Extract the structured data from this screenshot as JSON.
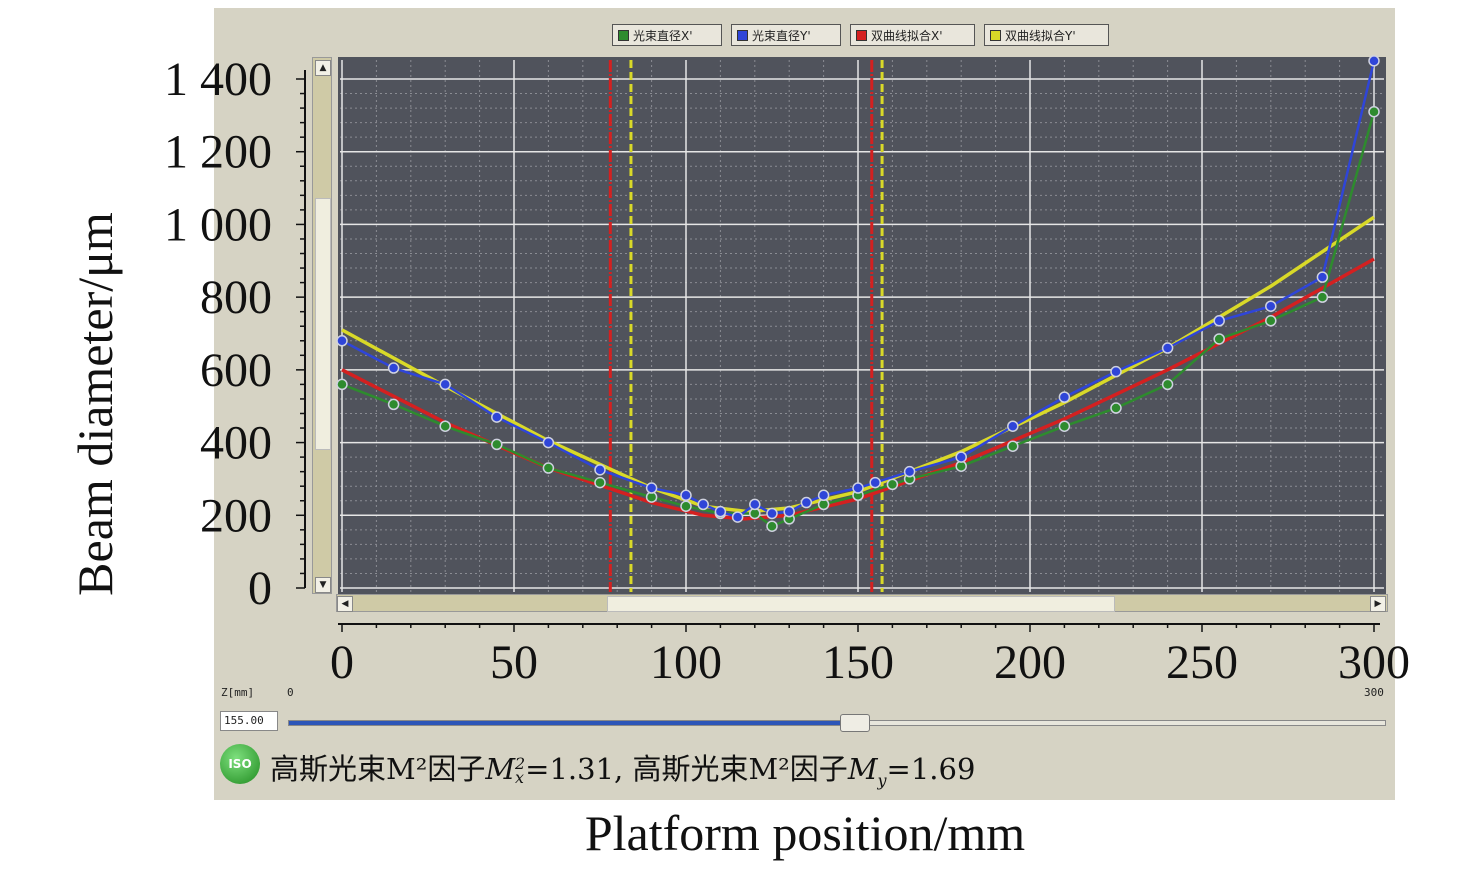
{
  "legend": [
    {
      "label": "光束直径X'",
      "color": "#2e8b2e"
    },
    {
      "label": "光束直径Y'",
      "color": "#2f45d8"
    },
    {
      "label": "双曲线拟合X'",
      "color": "#d42020"
    },
    {
      "label": "双曲线拟合Y'",
      "color": "#d9d928"
    }
  ],
  "axes": {
    "ylabel": "Beam diameter/μm",
    "xlabel": "Platform position/mm",
    "yticks": [
      "0",
      "200",
      "400",
      "600",
      "800",
      "1 000",
      "1 200",
      "1 400"
    ],
    "xticks": [
      "0",
      "50",
      "100",
      "150",
      "200",
      "250",
      "300"
    ]
  },
  "zcontrol": {
    "label": "Z[mm]",
    "min": "0",
    "max": "300",
    "value": "155.00",
    "position": 155
  },
  "icons": {
    "iso_badge": "ISO"
  },
  "result": {
    "prefix_x": "高斯光束M²因子",
    "mx_label": "M",
    "mx_sub": "x",
    "mx_sup": "2",
    "mx_value": "=1.31, ",
    "prefix_y": "高斯光束M²因子",
    "my_label": "M",
    "my_sub": "y",
    "my_value": "=1.69"
  },
  "chart_data": {
    "type": "line",
    "xlabel": "Platform position/mm",
    "ylabel": "Beam diameter/μm",
    "xlim": [
      0,
      300
    ],
    "ylim": [
      0,
      1400
    ],
    "grid": true,
    "legend_position": "top-center",
    "colors": {
      "background": "#50535c"
    },
    "series": [
      {
        "name": "光束直径X'",
        "color": "#2e8b2e",
        "markers": true,
        "points": [
          [
            0,
            560
          ],
          [
            15,
            505
          ],
          [
            30,
            445
          ],
          [
            45,
            395
          ],
          [
            60,
            330
          ],
          [
            75,
            290
          ],
          [
            90,
            250
          ],
          [
            100,
            225
          ],
          [
            110,
            205
          ],
          [
            120,
            205
          ],
          [
            125,
            170
          ],
          [
            130,
            190
          ],
          [
            140,
            230
          ],
          [
            150,
            255
          ],
          [
            160,
            285
          ],
          [
            165,
            300
          ],
          [
            180,
            335
          ],
          [
            195,
            390
          ],
          [
            210,
            445
          ],
          [
            225,
            495
          ],
          [
            240,
            560
          ],
          [
            255,
            685
          ],
          [
            270,
            735
          ],
          [
            285,
            800
          ],
          [
            300,
            1310
          ]
        ]
      },
      {
        "name": "光束直径Y'",
        "color": "#2f45d8",
        "markers": true,
        "points": [
          [
            0,
            680
          ],
          [
            15,
            605
          ],
          [
            30,
            560
          ],
          [
            45,
            470
          ],
          [
            60,
            400
          ],
          [
            75,
            325
          ],
          [
            90,
            275
          ],
          [
            100,
            255
          ],
          [
            105,
            230
          ],
          [
            110,
            210
          ],
          [
            115,
            195
          ],
          [
            120,
            230
          ],
          [
            125,
            205
          ],
          [
            130,
            210
          ],
          [
            135,
            235
          ],
          [
            140,
            255
          ],
          [
            150,
            275
          ],
          [
            155,
            290
          ],
          [
            165,
            320
          ],
          [
            180,
            360
          ],
          [
            195,
            445
          ],
          [
            210,
            525
          ],
          [
            225,
            595
          ],
          [
            240,
            660
          ],
          [
            255,
            735
          ],
          [
            270,
            775
          ],
          [
            285,
            855
          ],
          [
            300,
            1450
          ]
        ]
      },
      {
        "name": "双曲线拟合X'",
        "color": "#d42020",
        "markers": false,
        "points": [
          [
            0,
            600
          ],
          [
            30,
            455
          ],
          [
            60,
            330
          ],
          [
            90,
            235
          ],
          [
            105,
            200
          ],
          [
            117,
            190
          ],
          [
            130,
            200
          ],
          [
            150,
            245
          ],
          [
            180,
            345
          ],
          [
            210,
            465
          ],
          [
            240,
            600
          ],
          [
            270,
            745
          ],
          [
            300,
            905
          ]
        ]
      },
      {
        "name": "双曲线拟合Y'",
        "color": "#d9d928",
        "markers": false,
        "points": [
          [
            0,
            710
          ],
          [
            30,
            555
          ],
          [
            60,
            405
          ],
          [
            90,
            275
          ],
          [
            105,
            225
          ],
          [
            118,
            210
          ],
          [
            130,
            220
          ],
          [
            150,
            265
          ],
          [
            180,
            375
          ],
          [
            210,
            510
          ],
          [
            240,
            660
          ],
          [
            270,
            830
          ],
          [
            300,
            1020
          ]
        ]
      }
    ],
    "vlines": [
      {
        "name": "双曲线拟合X'",
        "x": 78,
        "color": "#d42020"
      },
      {
        "name": "双曲线拟合X'",
        "x": 154,
        "color": "#d42020"
      },
      {
        "name": "双曲线拟合Y'",
        "x": 84,
        "color": "#d9d928"
      },
      {
        "name": "双曲线拟合Y'",
        "x": 157,
        "color": "#d9d928"
      }
    ]
  }
}
